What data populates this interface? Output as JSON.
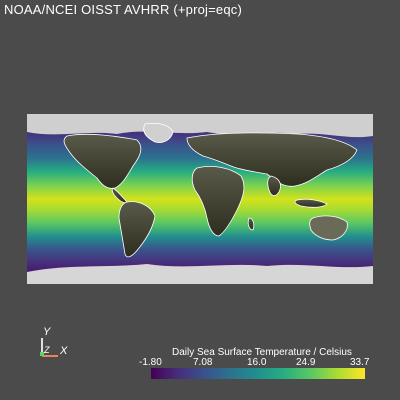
{
  "window": {
    "title": "NOAA/NCEI OISST AVHRR (+proj=eqc)"
  },
  "axes_widget": {
    "y_label": "Y",
    "z_label": "Z",
    "x_label": "X"
  },
  "colorbar": {
    "title": "Daily Sea Surface Temperature / Celsius",
    "ticks": [
      "-1.80",
      "7.08",
      "16.0",
      "24.9",
      "33.7"
    ],
    "colormap": [
      "#440154",
      "#3b528b",
      "#21908d",
      "#5cc863",
      "#fde725"
    ]
  },
  "colors": {
    "background": "#4b4b4b",
    "land": "#3a3a2a",
    "ice": "#d4d4d4",
    "coast": "#ffffff"
  }
}
